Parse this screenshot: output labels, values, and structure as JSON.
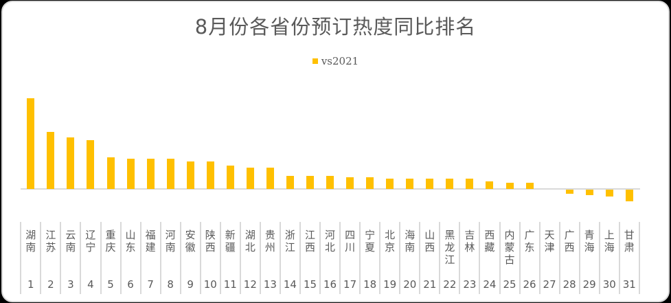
{
  "chart_data": {
    "type": "bar",
    "title": "8月份各省份预订热度同比排名",
    "legend": [
      {
        "name": "vs2021",
        "color": "#ffc000"
      }
    ],
    "legend_position": "top",
    "xlabel": "",
    "ylabel": "",
    "y_axis_visible": false,
    "grid": false,
    "value_units": "relative (no y-axis labels shown; values estimated from bar heights)",
    "categories": [
      "湖南",
      "江苏",
      "云南",
      "辽宁",
      "重庆",
      "山东",
      "福建",
      "河南",
      "安徽",
      "陕西",
      "新疆",
      "湖北",
      "贵州",
      "浙江",
      "江西",
      "河北",
      "四川",
      "宁夏",
      "北京",
      "海南",
      "山西",
      "黑龙江",
      "吉林",
      "西藏",
      "内蒙古",
      "广东",
      "天津",
      "广西",
      "青海",
      "上海",
      "甘肃"
    ],
    "ranks": [
      "1",
      "2",
      "3",
      "4",
      "5",
      "6",
      "7",
      "8",
      "9",
      "10",
      "11",
      "12",
      "13",
      "14",
      "15",
      "16",
      "17",
      "18",
      "19",
      "20",
      "21",
      "22",
      "23",
      "24",
      "25",
      "26",
      "27",
      "28",
      "29",
      "30",
      "31"
    ],
    "series": [
      {
        "name": "vs2021",
        "color": "#ffc000",
        "values": [
          132,
          83,
          75,
          71,
          46,
          44,
          44,
          44,
          40,
          40,
          34,
          31,
          31,
          19,
          19,
          19,
          17,
          17,
          15,
          15,
          15,
          15,
          15,
          11,
          9,
          9,
          0,
          -6,
          -8,
          -10,
          -17
        ]
      }
    ]
  }
}
